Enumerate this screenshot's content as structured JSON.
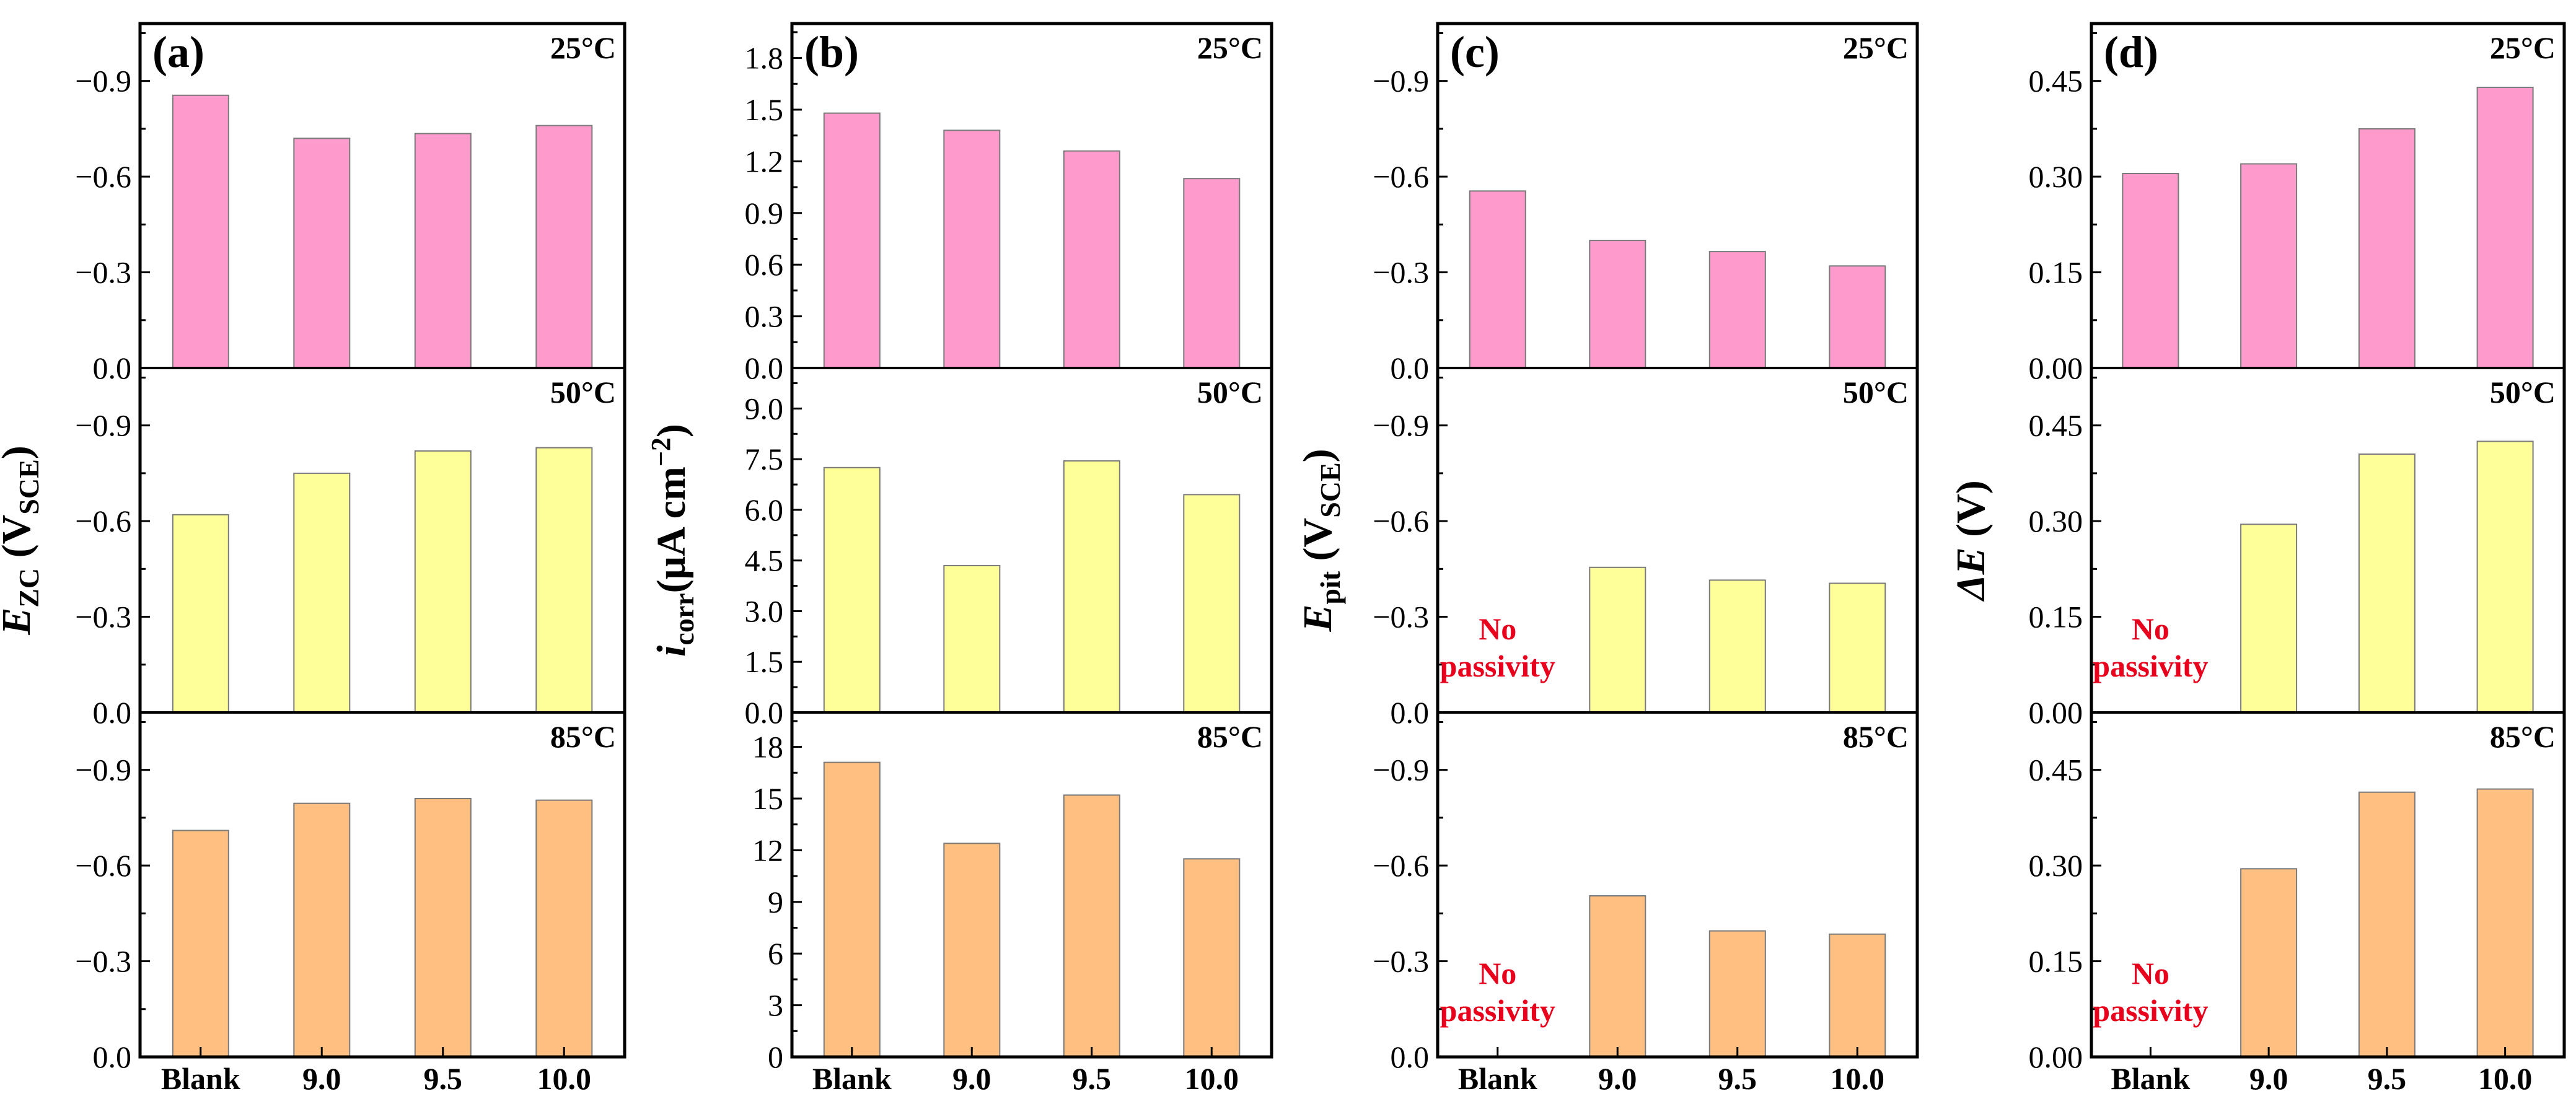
{
  "colors": {
    "row_fills": [
      "#FF9BCC",
      "#FFFF99",
      "#FFBF80"
    ],
    "bar_stroke": "#7A7A7A",
    "axis": "#000000",
    "annotation": "#E8001C"
  },
  "chart_data": [
    {
      "id": "a",
      "type": "bar",
      "panel_label": "(a)",
      "ylabel_main": "E",
      "ylabel_sub": "ZC",
      "ylabel_tail": " (V",
      "ylabel_sub2": "SCE",
      "ylabel_end": ")",
      "categories": [
        "Blank",
        "9.0",
        "9.5",
        "10.0"
      ],
      "rows": [
        {
          "temp": "25°C",
          "ylim": [
            0,
            1.08
          ],
          "ticks": [
            0,
            0.3,
            0.6,
            0.9
          ],
          "tick_labels": [
            "0.0",
            "−0.3",
            "−0.6",
            "−0.9"
          ],
          "values": [
            0.855,
            0.72,
            0.735,
            0.76
          ]
        },
        {
          "temp": "50°C",
          "ylim": [
            0,
            1.08
          ],
          "ticks": [
            0,
            0.3,
            0.6,
            0.9
          ],
          "tick_labels": [
            "0.0",
            "−0.3",
            "−0.6",
            "−0.9"
          ],
          "values": [
            0.62,
            0.75,
            0.82,
            0.83
          ]
        },
        {
          "temp": "85°C",
          "ylim": [
            0,
            1.08
          ],
          "ticks": [
            0,
            0.3,
            0.6,
            0.9
          ],
          "tick_labels": [
            "0.0",
            "−0.3",
            "−0.6",
            "−0.9"
          ],
          "values": [
            0.71,
            0.795,
            0.81,
            0.805
          ]
        }
      ]
    },
    {
      "id": "b",
      "type": "bar",
      "panel_label": "(b)",
      "ylabel_main": "i",
      "ylabel_sub": "corr",
      "ylabel_tail": "(μA cm",
      "ylabel_sup": "−2",
      "ylabel_end": ")",
      "categories": [
        "Blank",
        "9.0",
        "9.5",
        "10.0"
      ],
      "rows": [
        {
          "temp": "25°C",
          "ylim": [
            0,
            2.0
          ],
          "ticks": [
            0,
            0.3,
            0.6,
            0.9,
            1.2,
            1.5,
            1.8
          ],
          "tick_labels": [
            "0.0",
            "0.3",
            "0.6",
            "0.9",
            "1.2",
            "1.5",
            "1.8"
          ],
          "values": [
            1.48,
            1.38,
            1.26,
            1.1
          ]
        },
        {
          "temp": "50°C",
          "ylim": [
            0,
            10.2
          ],
          "ticks": [
            0,
            1.5,
            3,
            4.5,
            6,
            7.5,
            9
          ],
          "tick_labels": [
            "0.0",
            "1.5",
            "3.0",
            "4.5",
            "6.0",
            "7.5",
            "9.0"
          ],
          "values": [
            7.25,
            4.35,
            7.45,
            6.45
          ]
        },
        {
          "temp": "85°C",
          "ylim": [
            0,
            20
          ],
          "ticks": [
            0,
            3,
            6,
            9,
            12,
            15,
            18
          ],
          "tick_labels": [
            "0",
            "3",
            "6",
            "9",
            "12",
            "15",
            "18"
          ],
          "values": [
            17.1,
            12.4,
            15.2,
            11.5
          ]
        }
      ]
    },
    {
      "id": "c",
      "type": "bar",
      "panel_label": "(c)",
      "ylabel_main": "E",
      "ylabel_sub": "pit",
      "ylabel_tail": " (V",
      "ylabel_sub2": "SCE",
      "ylabel_end": ")",
      "categories": [
        "Blank",
        "9.0",
        "9.5",
        "10.0"
      ],
      "rows": [
        {
          "temp": "25°C",
          "ylim": [
            0,
            1.08
          ],
          "ticks": [
            0,
            0.3,
            0.6,
            0.9
          ],
          "tick_labels": [
            "0.0",
            "−0.3",
            "−0.6",
            "−0.9"
          ],
          "values": [
            0.555,
            0.4,
            0.365,
            0.32
          ],
          "note": []
        },
        {
          "temp": "50°C",
          "ylim": [
            0,
            1.08
          ],
          "ticks": [
            0,
            0.3,
            0.6,
            0.9
          ],
          "tick_labels": [
            "0.0",
            "−0.3",
            "−0.6",
            "−0.9"
          ],
          "values": [
            null,
            0.455,
            0.415,
            0.405
          ],
          "note": [
            "No",
            "passivity"
          ]
        },
        {
          "temp": "85°C",
          "ylim": [
            0,
            1.08
          ],
          "ticks": [
            0,
            0.3,
            0.6,
            0.9
          ],
          "tick_labels": [
            "0.0",
            "−0.3",
            "−0.6",
            "−0.9"
          ],
          "values": [
            null,
            0.505,
            0.395,
            0.385
          ],
          "note": [
            "No",
            "passivity"
          ]
        }
      ]
    },
    {
      "id": "d",
      "type": "bar",
      "panel_label": "(d)",
      "ylabel_main": "ΔE",
      "ylabel_tail": " (V)",
      "categories": [
        "Blank",
        "9.0",
        "9.5",
        "10.0"
      ],
      "rows": [
        {
          "temp": "25°C",
          "ylim": [
            0,
            0.54
          ],
          "ticks": [
            0,
            0.15,
            0.3,
            0.45
          ],
          "tick_labels": [
            "0.00",
            "0.15",
            "0.30",
            "0.45"
          ],
          "values": [
            0.305,
            0.32,
            0.375,
            0.44
          ],
          "note": []
        },
        {
          "temp": "50°C",
          "ylim": [
            0,
            0.54
          ],
          "ticks": [
            0,
            0.15,
            0.3,
            0.45
          ],
          "tick_labels": [
            "0.00",
            "0.15",
            "0.30",
            "0.45"
          ],
          "values": [
            null,
            0.295,
            0.405,
            0.425
          ],
          "note": [
            "No",
            "passivity"
          ]
        },
        {
          "temp": "85°C",
          "ylim": [
            0,
            0.54
          ],
          "ticks": [
            0,
            0.15,
            0.3,
            0.45
          ],
          "tick_labels": [
            "0.00",
            "0.15",
            "0.30",
            "0.45"
          ],
          "values": [
            null,
            0.295,
            0.415,
            0.42
          ],
          "note": [
            "No",
            "passivity"
          ]
        }
      ]
    }
  ]
}
